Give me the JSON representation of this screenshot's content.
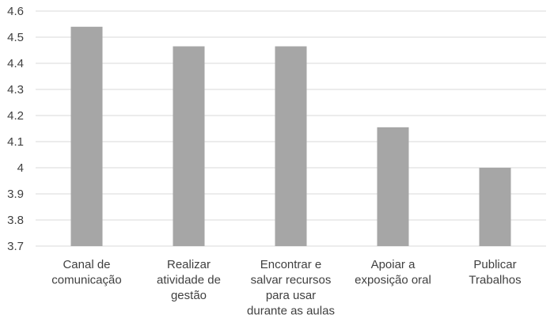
{
  "chart_data": {
    "type": "bar",
    "title": "",
    "xlabel": "",
    "ylabel": "",
    "categories": [
      [
        "Canal de",
        "comunicação"
      ],
      [
        "Realizar",
        "atividade de",
        "gestão"
      ],
      [
        "Encontrar e",
        "salvar recursos",
        "para usar",
        "durante as aulas"
      ],
      [
        "Apoiar a",
        "exposição oral"
      ],
      [
        "Publicar",
        "Trabalhos"
      ]
    ],
    "values": [
      4.54,
      4.465,
      4.465,
      4.155,
      4.0
    ],
    "ylim": [
      3.7,
      4.6
    ],
    "yticks": [
      "3.7",
      "3.8",
      "3.9",
      "4",
      "4.1",
      "4.2",
      "4.3",
      "4.4",
      "4.5",
      "4.6"
    ],
    "grid": true,
    "legend": "none",
    "bar_color": "#a6a6a6",
    "grid_color": "#d9d9d9"
  }
}
